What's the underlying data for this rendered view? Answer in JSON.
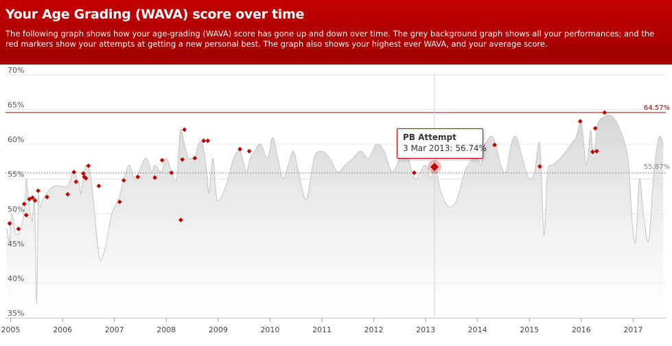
{
  "header": {
    "title": "Your Age Grading (WAVA) score over time",
    "description": "The following graph shows how your age-grading (WAVA) score has gone up and down over time. The grey background graph shows all your performances; and the red markers show your attempts at getting a new personal best. The graph also shows your highest ever WAVA, and your average score."
  },
  "tooltip": {
    "title": "PB Attempt",
    "date": "3 Mar 2013",
    "value": "56.74%",
    "x": 2013.17,
    "y": 56.74
  },
  "chart_data": {
    "type": "scatter",
    "xlim": [
      2004.9,
      2017.63
    ],
    "ylim": [
      35,
      70
    ],
    "yticks": [
      35,
      40,
      45,
      50,
      55,
      60,
      65,
      70
    ],
    "ytick_labels": [
      "35%",
      "40%",
      "45%",
      "50%",
      "55%",
      "60%",
      "65%",
      "70%"
    ],
    "xticks": [
      2005,
      2006,
      2007,
      2008,
      2009,
      2010,
      2011,
      2012,
      2013,
      2014,
      2015,
      2016,
      2017
    ],
    "xtick_labels": [
      "2005",
      "2006",
      "2007",
      "2008",
      "2009",
      "2010",
      "2011",
      "2012",
      "2013",
      "2014",
      "2015",
      "2016",
      "2017"
    ],
    "grid": true,
    "colors": {
      "pb": "#c00000",
      "area": "#d9d9d9",
      "max_line": "#aa0000",
      "avg_line": "#777777"
    },
    "max_line": {
      "value": 64.57,
      "label": "64.57%"
    },
    "avg_line": {
      "value": 55.87,
      "label": "55.87%"
    },
    "all_performances": {
      "x": [
        2004.92,
        2004.98,
        2005.02,
        2005.1,
        2005.2,
        2005.27,
        2005.3,
        2005.33,
        2005.38,
        2005.42,
        2005.46,
        2005.5,
        2005.53,
        2005.56,
        2005.62,
        2005.7,
        2005.85,
        2006.1,
        2006.2,
        2006.28,
        2006.33,
        2006.36,
        2006.42,
        2006.46,
        2006.55,
        2006.7,
        2006.78,
        2006.85,
        2006.95,
        2007.08,
        2007.15,
        2007.28,
        2007.4,
        2007.6,
        2007.72,
        2007.78,
        2007.9,
        2008.0,
        2008.1,
        2008.2,
        2008.27,
        2008.35,
        2008.42,
        2008.48,
        2008.55,
        2008.62,
        2008.7,
        2008.78,
        2008.82,
        2008.9,
        2008.98,
        2009.15,
        2009.3,
        2009.42,
        2009.5,
        2009.55,
        2009.62,
        2009.7,
        2009.82,
        2009.95,
        2010.05,
        2010.15,
        2010.25,
        2010.35,
        2010.45,
        2010.55,
        2010.7,
        2010.85,
        2011.0,
        2011.15,
        2011.3,
        2011.45,
        2011.6,
        2011.75,
        2011.9,
        2012.05,
        2012.2,
        2012.35,
        2012.5,
        2012.6,
        2012.7,
        2012.8,
        2012.9,
        2013.0,
        2013.1,
        2013.17,
        2013.3,
        2013.45,
        2013.6,
        2013.75,
        2013.9,
        2013.95,
        2014.05,
        2014.15,
        2014.3,
        2014.45,
        2014.55,
        2014.65,
        2014.75,
        2014.9,
        2015.0,
        2015.1,
        2015.2,
        2015.28,
        2015.35,
        2015.45,
        2015.6,
        2015.8,
        2015.9,
        2016.0,
        2016.1,
        2016.18,
        2016.22,
        2016.27,
        2016.32,
        2016.45,
        2016.6,
        2016.75,
        2016.9,
        2016.98,
        2017.05,
        2017.12,
        2017.2,
        2017.3,
        2017.4,
        2017.5,
        2017.58
      ],
      "y": [
        48,
        46,
        50,
        47,
        48,
        51,
        55,
        53,
        50,
        49,
        52,
        37,
        52,
        51,
        52,
        53,
        54,
        54,
        56,
        55,
        54,
        53,
        56,
        57,
        55,
        44,
        44,
        46,
        50,
        52,
        54,
        57,
        55,
        58,
        56,
        57,
        56,
        58,
        56,
        55,
        62,
        60,
        58,
        58,
        58,
        60,
        60,
        56,
        53,
        58,
        52,
        54,
        58,
        59,
        57,
        56,
        58,
        59,
        60,
        58,
        61,
        58,
        55,
        57,
        59,
        56,
        52,
        58,
        59,
        58,
        56,
        57,
        58,
        59,
        58,
        60,
        59,
        56,
        58,
        60,
        57,
        55,
        56,
        57,
        55,
        57,
        53,
        51,
        52,
        56,
        58,
        61,
        57,
        60,
        61,
        57,
        56,
        60,
        61,
        57,
        55,
        56,
        60,
        47,
        56,
        57,
        58,
        60,
        61,
        63,
        57,
        62,
        59,
        60,
        63,
        64,
        64,
        62,
        58,
        49,
        46,
        55,
        50,
        46,
        56,
        61,
        60
      ]
    },
    "pb_attempts": {
      "x": [
        2004.98,
        2005.15,
        2005.26,
        2005.3,
        2005.36,
        2005.42,
        2005.47,
        2005.53,
        2005.7,
        2006.1,
        2006.22,
        2006.26,
        2006.4,
        2006.42,
        2006.45,
        2006.5,
        2006.7,
        2007.1,
        2007.18,
        2007.45,
        2007.78,
        2007.92,
        2008.1,
        2008.28,
        2008.31,
        2008.35,
        2008.55,
        2008.72,
        2008.8,
        2009.42,
        2009.6,
        2012.78,
        2013.17,
        2014.33,
        2015.2,
        2015.98,
        2016.22,
        2016.27,
        2016.3,
        2016.45
      ],
      "y": [
        48.6,
        47.8,
        51.4,
        49.8,
        52.1,
        52.3,
        51.9,
        53.3,
        52.4,
        52.8,
        56.0,
        54.6,
        55.8,
        55.3,
        55.1,
        56.9,
        54.0,
        51.7,
        54.8,
        55.3,
        55.2,
        57.7,
        55.9,
        49.1,
        57.8,
        62.1,
        58.0,
        60.5,
        60.5,
        59.3,
        59.0,
        55.9,
        56.74,
        59.9,
        56.8,
        63.3,
        58.9,
        62.3,
        59.0,
        64.57
      ]
    }
  }
}
